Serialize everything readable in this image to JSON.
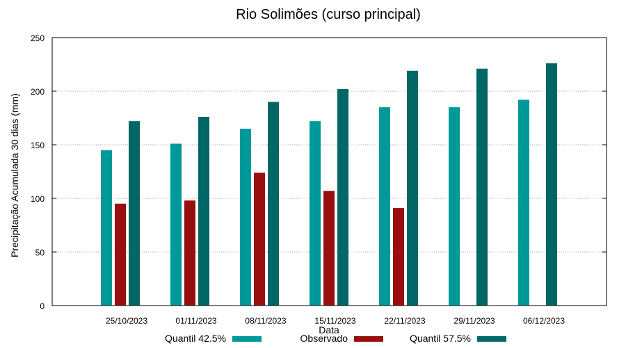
{
  "chart_data": {
    "type": "bar",
    "title": "Rio Solimões (curso principal)",
    "xlabel": "Data",
    "ylabel": "Precipitação Acumulada 30 dias (mm)",
    "ylim": [
      0,
      250
    ],
    "yticks": [
      "0",
      "50",
      "100",
      "150",
      "200",
      "250"
    ],
    "grid": true,
    "legend_position": "bottom",
    "categories": [
      "25/10/2023",
      "01/11/2023",
      "08/11/2023",
      "15/11/2023",
      "22/11/2023",
      "29/11/2023",
      "06/12/2023"
    ],
    "series": [
      {
        "name": "Quantil 42.5%",
        "color": "#009999",
        "values": [
          145,
          151,
          165,
          172,
          185,
          185,
          192
        ]
      },
      {
        "name": "Observado",
        "color": "#990f0f",
        "values": [
          95,
          98,
          124,
          107,
          91,
          null,
          null
        ]
      },
      {
        "name": "Quantil 57.5%",
        "color": "#006666",
        "values": [
          172,
          176,
          190,
          202,
          219,
          221,
          226
        ]
      }
    ]
  }
}
